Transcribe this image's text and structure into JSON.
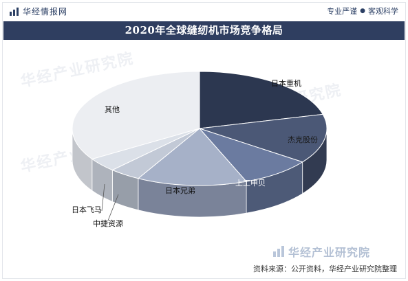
{
  "header": {
    "brand": "华经情报网",
    "slogan": [
      "专业严谨",
      "客观科学"
    ]
  },
  "chart_data": {
    "type": "pie",
    "title": "2020年全球缝纫机市场竞争格局",
    "categories": [
      "日本重机",
      "杰克股份",
      "上工申贝",
      "日本兄弟",
      "中捷资源",
      "日本飞马",
      "其他"
    ],
    "values": [
      21,
      14,
      9,
      14,
      4,
      4,
      34
    ],
    "value_unit": "%",
    "legend": "none",
    "colors": [
      "#2c3750",
      "#4b5876",
      "#6b7ba0",
      "#a6b1c8",
      "#c2c9d6",
      "#dbe0e8",
      "#eceef2"
    ],
    "side_colors": [
      "#1f2738",
      "#323b51",
      "#4d5a77",
      "#7a8399",
      "#979ea9",
      "#aeb3bc",
      "#c2c5cb"
    ]
  },
  "watermark": {
    "text": "华经产业研究院",
    "logo_text": "华经产业研究院"
  },
  "footer": {
    "source": "资料来源：公开资料，华经产业研究院整理"
  }
}
